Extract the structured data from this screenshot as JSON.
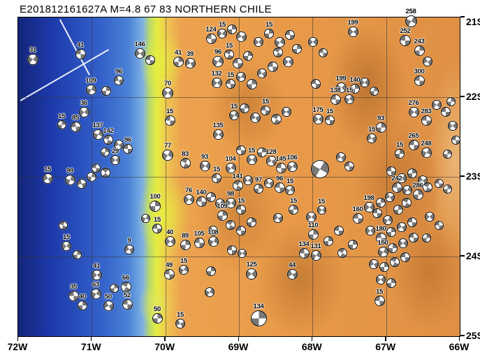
{
  "title": "E201812161627A M=4.8 67 83 NORTHERN CHILE",
  "map": {
    "region_name": "NORTHERN CHILE",
    "lon_labels": [
      "72W",
      "71W",
      "70W",
      "69W",
      "68W",
      "67W",
      "66W"
    ],
    "lat_labels": [
      "21S",
      "22S",
      "23S",
      "24S",
      "25S"
    ],
    "colors": {
      "ocean_deep": "#14257a",
      "ocean": "#2950bd",
      "coast_low": "#e6ec40",
      "land": "#e89a49",
      "land_high": "#a9611f",
      "ball_fill": "#787878",
      "ball_bg": "#ffffff",
      "grid": "#373737"
    },
    "beachballs": [
      [
        47,
        85,
        16,
        40,
        "31"
      ],
      [
        115,
        77,
        15,
        90,
        "41"
      ],
      [
        130,
        128,
        15,
        25,
        "109"
      ],
      [
        152,
        130,
        14,
        0,
        ""
      ],
      [
        170,
        115,
        14,
        70,
        "96"
      ],
      [
        200,
        76,
        15,
        50,
        "146"
      ],
      [
        215,
        86,
        14,
        95,
        ""
      ],
      [
        255,
        88,
        15,
        0,
        "41"
      ],
      [
        272,
        90,
        15,
        60,
        "39"
      ],
      [
        240,
        133,
        16,
        45,
        "70"
      ],
      [
        243,
        172,
        15,
        90,
        "15"
      ],
      [
        88,
        178,
        13,
        0,
        "15"
      ],
      [
        108,
        181,
        15,
        85,
        "85"
      ],
      [
        120,
        160,
        15,
        40,
        "36"
      ],
      [
        140,
        192,
        15,
        25,
        "137"
      ],
      [
        155,
        200,
        14,
        115,
        "142"
      ],
      [
        170,
        207,
        14,
        60,
        ""
      ],
      [
        183,
        213,
        14,
        90,
        "96"
      ],
      [
        150,
        217,
        13,
        0,
        ""
      ],
      [
        165,
        229,
        14,
        45,
        "29"
      ],
      [
        137,
        240,
        13,
        95,
        ""
      ],
      [
        151,
        247,
        14,
        135,
        ""
      ],
      [
        68,
        255,
        15,
        60,
        "15"
      ],
      [
        100,
        257,
        15,
        20,
        "99"
      ],
      [
        117,
        263,
        14,
        75,
        ""
      ],
      [
        131,
        253,
        14,
        10,
        ""
      ],
      [
        90,
        322,
        13,
        110,
        ""
      ],
      [
        95,
        352,
        14,
        40,
        "15"
      ],
      [
        110,
        364,
        13,
        0,
        ""
      ],
      [
        138,
        393,
        15,
        45,
        "41"
      ],
      [
        105,
        423,
        15,
        90,
        "35"
      ],
      [
        137,
        420,
        15,
        30,
        "63"
      ],
      [
        118,
        437,
        14,
        0,
        "40"
      ],
      [
        155,
        437,
        15,
        60,
        "50"
      ],
      [
        182,
        435,
        15,
        90,
        "52"
      ],
      [
        163,
        412,
        13,
        0,
        ""
      ],
      [
        180,
        410,
        15,
        120,
        "66"
      ],
      [
        225,
        455,
        15,
        0,
        "50"
      ],
      [
        258,
        463,
        14,
        60,
        "15"
      ],
      [
        240,
        222,
        16,
        30,
        "77"
      ],
      [
        265,
        233,
        15,
        120,
        "83"
      ],
      [
        293,
        237,
        15,
        45,
        "93"
      ],
      [
        222,
        295,
        16,
        0,
        "100"
      ],
      [
        208,
        312,
        13,
        30,
        ""
      ],
      [
        225,
        327,
        14,
        90,
        "15"
      ],
      [
        243,
        345,
        15,
        45,
        "40"
      ],
      [
        265,
        350,
        15,
        0,
        "89"
      ],
      [
        285,
        347,
        15,
        90,
        "105"
      ],
      [
        305,
        345,
        15,
        30,
        "108"
      ],
      [
        185,
        357,
        14,
        60,
        "9"
      ],
      [
        242,
        392,
        15,
        90,
        "49"
      ],
      [
        263,
        386,
        14,
        30,
        "15"
      ],
      [
        270,
        285,
        15,
        45,
        "76"
      ],
      [
        288,
        288,
        15,
        90,
        "140"
      ],
      [
        302,
        282,
        14,
        0,
        ""
      ],
      [
        315,
        291,
        14,
        30,
        ""
      ],
      [
        360,
        392,
        16,
        45,
        "125"
      ],
      [
        370,
        455,
        23,
        0,
        "134"
      ],
      [
        300,
        418,
        14,
        30,
        ""
      ],
      [
        302,
        55,
        15,
        90,
        "124"
      ],
      [
        318,
        48,
        14,
        45,
        "15"
      ],
      [
        332,
        42,
        14,
        0,
        ""
      ],
      [
        345,
        52,
        15,
        60,
        ""
      ],
      [
        312,
        88,
        16,
        30,
        "96"
      ],
      [
        328,
        78,
        14,
        120,
        "15"
      ],
      [
        340,
        90,
        15,
        90,
        ""
      ],
      [
        355,
        80,
        14,
        0,
        ""
      ],
      [
        370,
        60,
        14,
        45,
        ""
      ],
      [
        385,
        48,
        14,
        0,
        "15"
      ],
      [
        400,
        60,
        15,
        30,
        ""
      ],
      [
        415,
        50,
        14,
        90,
        ""
      ],
      [
        398,
        75,
        14,
        120,
        ""
      ],
      [
        412,
        88,
        15,
        45,
        ""
      ],
      [
        425,
        70,
        14,
        0,
        ""
      ],
      [
        310,
        118,
        15,
        45,
        "132"
      ],
      [
        330,
        120,
        14,
        90,
        "15"
      ],
      [
        345,
        110,
        14,
        30,
        ""
      ],
      [
        360,
        120,
        15,
        0,
        ""
      ],
      [
        375,
        105,
        14,
        60,
        ""
      ],
      [
        390,
        95,
        15,
        90,
        ""
      ],
      [
        448,
        60,
        14,
        45,
        ""
      ],
      [
        462,
        75,
        13,
        90,
        ""
      ],
      [
        452,
        120,
        14,
        90,
        ""
      ],
      [
        522,
        118,
        14,
        45,
        ""
      ],
      [
        535,
        130,
        13,
        0,
        ""
      ],
      [
        312,
        192,
        15,
        45,
        "135"
      ],
      [
        335,
        165,
        14,
        30,
        "15"
      ],
      [
        350,
        155,
        14,
        0,
        ""
      ],
      [
        365,
        168,
        15,
        60,
        ""
      ],
      [
        380,
        158,
        14,
        90,
        "15"
      ],
      [
        395,
        170,
        15,
        120,
        ""
      ],
      [
        410,
        160,
        14,
        45,
        ""
      ],
      [
        330,
        240,
        15,
        30,
        "104"
      ],
      [
        345,
        215,
        14,
        90,
        ""
      ],
      [
        360,
        228,
        15,
        45,
        "15"
      ],
      [
        375,
        218,
        14,
        0,
        ""
      ],
      [
        388,
        230,
        15,
        60,
        "128"
      ],
      [
        402,
        240,
        15,
        90,
        "145"
      ],
      [
        418,
        238,
        15,
        30,
        "106"
      ],
      [
        340,
        265,
        15,
        120,
        "141"
      ],
      [
        355,
        258,
        14,
        45,
        ""
      ],
      [
        310,
        255,
        14,
        90,
        "15"
      ],
      [
        370,
        270,
        14,
        0,
        "97"
      ],
      [
        385,
        262,
        14,
        60,
        ""
      ],
      [
        400,
        268,
        15,
        90,
        "96"
      ],
      [
        415,
        272,
        14,
        30,
        "15"
      ],
      [
        330,
        290,
        15,
        45,
        "98"
      ],
      [
        345,
        300,
        14,
        90,
        "15"
      ],
      [
        318,
        308,
        15,
        0,
        "109"
      ],
      [
        305,
        330,
        14,
        60,
        ""
      ],
      [
        330,
        322,
        14,
        120,
        ""
      ],
      [
        345,
        330,
        14,
        90,
        ""
      ],
      [
        360,
        318,
        14,
        0,
        ""
      ],
      [
        332,
        358,
        14,
        90,
        ""
      ],
      [
        346,
        362,
        13,
        45,
        ""
      ],
      [
        302,
        388,
        14,
        0,
        ""
      ],
      [
        398,
        312,
        14,
        60,
        ""
      ],
      [
        420,
        300,
        14,
        0,
        "15"
      ],
      [
        455,
        170,
        15,
        45,
        "175"
      ],
      [
        472,
        172,
        14,
        90,
        "15"
      ],
      [
        458,
        242,
        26,
        30,
        ""
      ],
      [
        488,
        225,
        14,
        60,
        ""
      ],
      [
        500,
        238,
        14,
        90,
        ""
      ],
      [
        445,
        310,
        15,
        45,
        ""
      ],
      [
        448,
        335,
        15,
        0,
        "110"
      ],
      [
        435,
        362,
        15,
        90,
        "134"
      ],
      [
        452,
        365,
        15,
        30,
        "131"
      ],
      [
        418,
        392,
        15,
        60,
        "44"
      ],
      [
        470,
        345,
        14,
        0,
        ""
      ],
      [
        485,
        330,
        14,
        90,
        ""
      ],
      [
        460,
        300,
        13,
        45,
        "15"
      ],
      [
        490,
        362,
        14,
        120,
        ""
      ],
      [
        505,
        350,
        14,
        0,
        ""
      ],
      [
        528,
        296,
        15,
        45,
        "198"
      ],
      [
        512,
        312,
        15,
        90,
        "160"
      ],
      [
        545,
        290,
        14,
        0,
        ""
      ],
      [
        558,
        282,
        14,
        60,
        ""
      ],
      [
        540,
        305,
        14,
        90,
        ""
      ],
      [
        555,
        315,
        14,
        30,
        ""
      ],
      [
        570,
        300,
        14,
        0,
        ""
      ],
      [
        582,
        290,
        14,
        120,
        ""
      ],
      [
        530,
        330,
        14,
        45,
        ""
      ],
      [
        545,
        340,
        15,
        90,
        "180"
      ],
      [
        560,
        332,
        14,
        0,
        ""
      ],
      [
        575,
        325,
        14,
        60,
        ""
      ],
      [
        590,
        318,
        14,
        90,
        ""
      ],
      [
        548,
        360,
        15,
        30,
        "150"
      ],
      [
        562,
        355,
        14,
        0,
        ""
      ],
      [
        577,
        348,
        14,
        45,
        ""
      ],
      [
        592,
        340,
        14,
        90,
        ""
      ],
      [
        535,
        378,
        14,
        60,
        ""
      ],
      [
        550,
        382,
        14,
        0,
        ""
      ],
      [
        565,
        375,
        14,
        120,
        ""
      ],
      [
        580,
        368,
        14,
        90,
        ""
      ],
      [
        545,
        400,
        14,
        45,
        ""
      ],
      [
        560,
        405,
        14,
        0,
        ""
      ],
      [
        543,
        430,
        15,
        90,
        "15"
      ],
      [
        615,
        310,
        14,
        45,
        ""
      ],
      [
        628,
        322,
        13,
        90,
        ""
      ],
      [
        610,
        340,
        13,
        0,
        ""
      ],
      [
        505,
        45,
        15,
        45,
        "199"
      ],
      [
        580,
        58,
        16,
        90,
        "252"
      ],
      [
        600,
        72,
        15,
        0,
        "243"
      ],
      [
        588,
        30,
        17,
        30,
        "258"
      ],
      [
        612,
        88,
        14,
        60,
        ""
      ],
      [
        600,
        115,
        15,
        90,
        "300"
      ],
      [
        488,
        125,
        15,
        45,
        "199"
      ],
      [
        508,
        127,
        14,
        0,
        "140"
      ],
      [
        480,
        142,
        15,
        90,
        "138"
      ],
      [
        500,
        142,
        14,
        30,
        "15"
      ],
      [
        592,
        160,
        15,
        45,
        "276"
      ],
      [
        610,
        172,
        15,
        90,
        "283"
      ],
      [
        545,
        182,
        15,
        0,
        "93"
      ],
      [
        532,
        198,
        14,
        60,
        "15"
      ],
      [
        592,
        207,
        15,
        90,
        "265"
      ],
      [
        610,
        218,
        15,
        30,
        "248"
      ],
      [
        572,
        220,
        14,
        0,
        "15"
      ],
      [
        625,
        150,
        14,
        45,
        ""
      ],
      [
        638,
        160,
        14,
        90,
        ""
      ],
      [
        645,
        145,
        13,
        0,
        ""
      ],
      [
        560,
        245,
        14,
        90,
        ""
      ],
      [
        575,
        255,
        14,
        45,
        ""
      ],
      [
        590,
        248,
        14,
        0,
        ""
      ],
      [
        605,
        258,
        14,
        60,
        ""
      ],
      [
        568,
        268,
        15,
        90,
        "242"
      ],
      [
        583,
        272,
        14,
        30,
        ""
      ],
      [
        598,
        278,
        15,
        0,
        "286"
      ],
      [
        612,
        268,
        14,
        120,
        ""
      ],
      [
        628,
        262,
        13,
        90,
        ""
      ],
      [
        640,
        270,
        13,
        0,
        ""
      ],
      [
        648,
        180,
        14,
        45,
        ""
      ],
      [
        652,
        200,
        13,
        90,
        ""
      ],
      [
        640,
        220,
        13,
        0,
        ""
      ]
    ]
  }
}
